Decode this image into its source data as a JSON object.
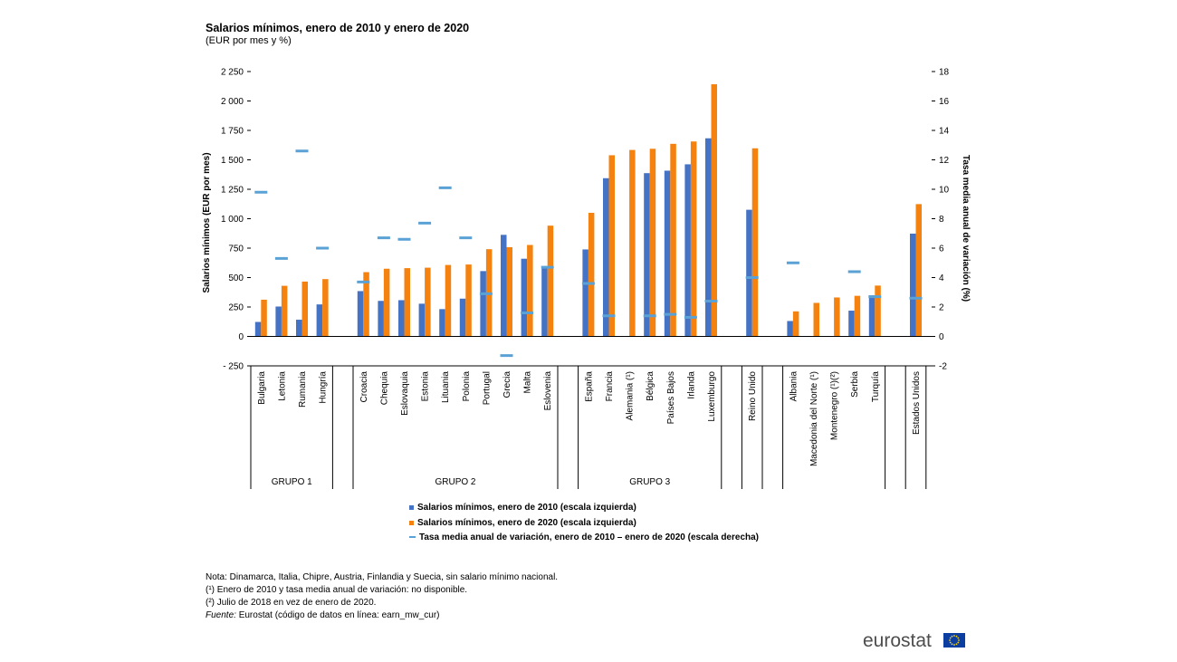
{
  "title": "Salarios mínimos,  enero de 2010 y enero de 2020",
  "subtitle": "(EUR por mes y %)",
  "legend": {
    "s2010": "Salarios mínimos, enero de 2010 (escala izquierda)",
    "s2020": "Salarios mínimos, enero de 2020 (escala izquierda)",
    "rate": "Tasa media anual de variación, enero de 2010 – enero de 2020 (escala derecha)"
  },
  "notes": {
    "line1": "Nota: Dinamarca, Italia, Chipre, Austria, Finlandia y Suecia, sin salario mínimo nacional.",
    "line2": "(¹) Enero de 2010 y tasa media anual de variación: no disponible.",
    "line3": "(²) Julio de 2018 en vez de enero de 2020.",
    "source_label": "Fuente:",
    "source_text": " Eurostat (código de datos en línea: earn_mw_cur)"
  },
  "logo": "eurostat",
  "colors": {
    "s2010": "#4472c4",
    "s2020": "#f5820f",
    "rate": "#5aa2d6",
    "axis": "#000000",
    "eu_flag": "#0c3da0",
    "eu_stars": "#ffd500"
  },
  "chart_data": {
    "type": "bar",
    "ylabel": "Salarios mínimos (EUR por mes)",
    "y2label": "Tasa media anual de variación (%)",
    "ylim": [
      -250,
      2250
    ],
    "y_ticks": [
      "2 250",
      "2 000",
      "1 750",
      "1 500",
      "1 250",
      "1 000",
      "750",
      "500",
      "250",
      "0",
      "- 250"
    ],
    "y2lim": [
      -2,
      18
    ],
    "y2_ticks": [
      "18",
      "16",
      "14",
      "12",
      "10",
      "8",
      "6",
      "4",
      "2",
      "0",
      "-2"
    ],
    "grid": false,
    "groups": [
      {
        "label": "GRUPO 1",
        "countries": [
          {
            "name": "Bulgaria",
            "v2010": 123,
            "v2020": 312,
            "rate": 9.8
          },
          {
            "name": "Letonia",
            "v2010": 254,
            "v2020": 430,
            "rate": 5.3
          },
          {
            "name": "Rumania",
            "v2010": 142,
            "v2020": 466,
            "rate": 12.6
          },
          {
            "name": "Hungría",
            "v2010": 272,
            "v2020": 487,
            "rate": 6.0
          }
        ]
      },
      {
        "label": "GRUPO 2",
        "countries": [
          {
            "name": "Croacia",
            "v2010": 385,
            "v2020": 546,
            "rate": 3.7
          },
          {
            "name": "Chequia",
            "v2010": 302,
            "v2020": 575,
            "rate": 6.7
          },
          {
            "name": "Eslovaquia",
            "v2010": 308,
            "v2020": 580,
            "rate": 6.6
          },
          {
            "name": "Estonia",
            "v2010": 278,
            "v2020": 584,
            "rate": 7.7
          },
          {
            "name": "Lituania",
            "v2010": 232,
            "v2020": 607,
            "rate": 10.1
          },
          {
            "name": "Polonia",
            "v2010": 321,
            "v2020": 611,
            "rate": 6.7
          },
          {
            "name": "Portugal",
            "v2010": 555,
            "v2020": 741,
            "rate": 2.9
          },
          {
            "name": "Grecia",
            "v2010": 863,
            "v2020": 758,
            "rate": -1.3
          },
          {
            "name": "Malta",
            "v2010": 660,
            "v2020": 777,
            "rate": 1.6
          },
          {
            "name": "Eslovenia",
            "v2010": 597,
            "v2020": 941,
            "rate": 4.7
          }
        ]
      },
      {
        "label": "GRUPO 3",
        "countries": [
          {
            "name": "España",
            "v2010": 739,
            "v2020": 1050,
            "rate": 3.6
          },
          {
            "name": "Francia",
            "v2010": 1344,
            "v2020": 1539,
            "rate": 1.4
          },
          {
            "name": "Alemania (¹)",
            "v2010": null,
            "v2020": 1584,
            "rate": null
          },
          {
            "name": "Bélgica",
            "v2010": 1387,
            "v2020": 1594,
            "rate": 1.4
          },
          {
            "name": "Países Bajos",
            "v2010": 1408,
            "v2020": 1636,
            "rate": 1.5
          },
          {
            "name": "Irlanda",
            "v2010": 1462,
            "v2020": 1656,
            "rate": 1.3
          },
          {
            "name": "Luxemburgo",
            "v2010": 1683,
            "v2020": 2142,
            "rate": 2.4
          }
        ]
      },
      {
        "label": "",
        "countries": [
          {
            "name": "Reino Unido",
            "v2010": 1076,
            "v2020": 1598,
            "rate": 4.0
          }
        ]
      },
      {
        "label": "",
        "countries": [
          {
            "name": "Albania",
            "v2010": 131,
            "v2020": 213,
            "rate": 5.0
          },
          {
            "name": "Macedonia del Norte (¹)",
            "v2010": null,
            "v2020": 285,
            "rate": null
          },
          {
            "name": "Montenegro (¹)(²)",
            "v2010": null,
            "v2020": 331,
            "rate": null
          },
          {
            "name": "Serbia",
            "v2010": 219,
            "v2020": 345,
            "rate": 4.4
          },
          {
            "name": "Turquía",
            "v2010": 350,
            "v2020": 432,
            "rate": 2.7
          }
        ]
      },
      {
        "label": "",
        "countries": [
          {
            "name": "Estados Unidos",
            "v2010": 873,
            "v2020": 1124,
            "rate": 2.6
          }
        ]
      }
    ]
  }
}
